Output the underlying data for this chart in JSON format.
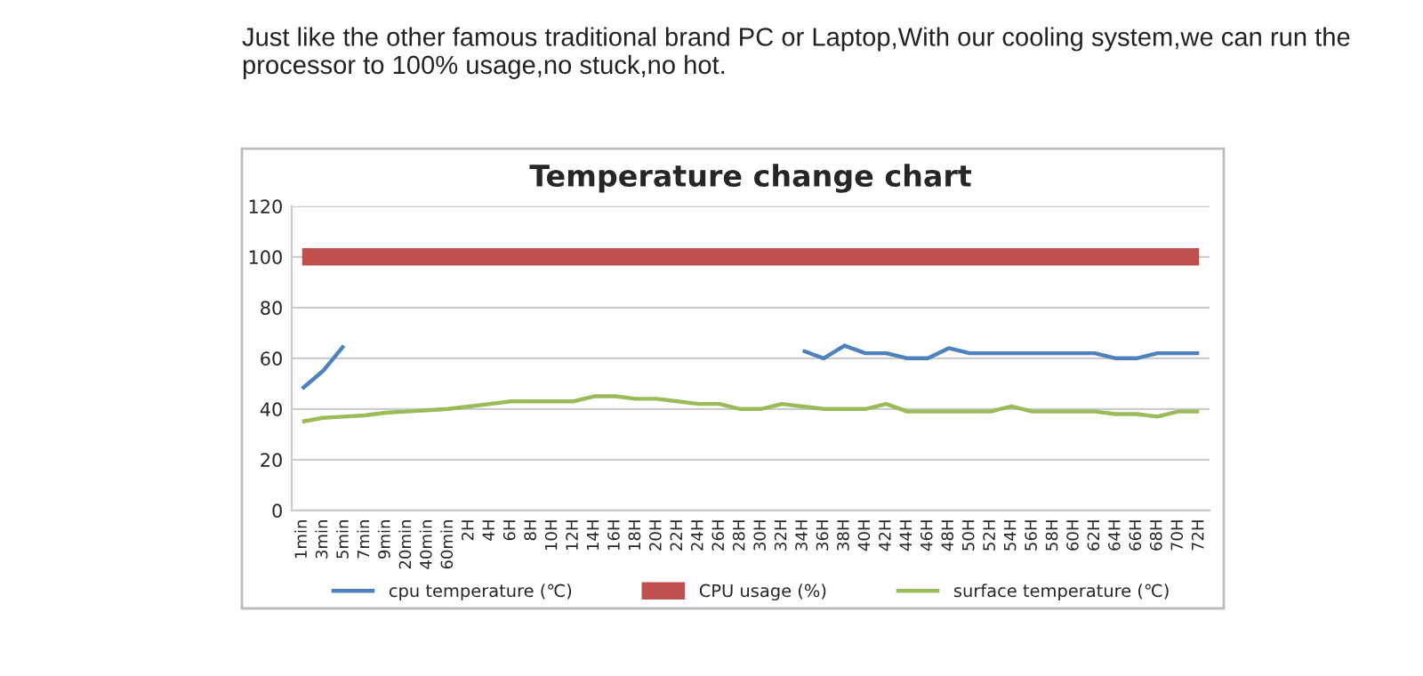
{
  "chart_data": {
    "type": "line",
    "title": "Temperature change chart",
    "annotations": [
      "Just like the other famous traditional brand PC or Laptop,With our cooling system,we can run the processor to 100% usage,no stuck,no hot."
    ],
    "categories": [
      "1min",
      "3min",
      "5min",
      "7min",
      "9min",
      "20min",
      "40min",
      "60min",
      "2H",
      "4H",
      "6H",
      "8H",
      "10H",
      "12H",
      "14H",
      "16H",
      "18H",
      "20H",
      "22H",
      "24H",
      "26H",
      "28H",
      "30H",
      "32H",
      "34H",
      "36H",
      "38H",
      "40H",
      "42H",
      "44H",
      "46H",
      "48H",
      "50H",
      "52H",
      "54H",
      "56H",
      "58H",
      "60H",
      "62H",
      "64H",
      "66H",
      "68H",
      "70H",
      "72H"
    ],
    "series": [
      {
        "name": "cpu temperature (℃)",
        "color": "#4f81bd",
        "marker": "none",
        "values": [
          48,
          55,
          65,
          null,
          null,
          null,
          null,
          null,
          null,
          null,
          null,
          null,
          null,
          null,
          null,
          null,
          null,
          null,
          null,
          null,
          null,
          null,
          null,
          null,
          63,
          60,
          65,
          62,
          62,
          60,
          60,
          64,
          62,
          62,
          62,
          62,
          62,
          62,
          62,
          60,
          60,
          62,
          62,
          62
        ]
      },
      {
        "name": "CPU usage (%)",
        "color": "#c0504d",
        "marker": "none",
        "values": [
          100,
          100,
          100,
          100,
          100,
          100,
          100,
          100,
          100,
          100,
          100,
          100,
          100,
          100,
          100,
          100,
          100,
          100,
          100,
          100,
          100,
          100,
          100,
          100,
          100,
          100,
          100,
          100,
          100,
          100,
          100,
          100,
          100,
          100,
          100,
          100,
          100,
          100,
          100,
          100,
          100,
          100,
          100,
          100
        ]
      },
      {
        "name": "surface temperature (℃)",
        "color": "#9bbb59",
        "marker": "none",
        "values": [
          35,
          36.5,
          37,
          37.5,
          38.5,
          39,
          39.5,
          40,
          41,
          42,
          43,
          43,
          43,
          43,
          45,
          45,
          44,
          44,
          43,
          42,
          42,
          40,
          40,
          42,
          41,
          40,
          40,
          40,
          42,
          39,
          39,
          39,
          39,
          39,
          41,
          39,
          39,
          39,
          39,
          38,
          38,
          37,
          39,
          39
        ]
      }
    ],
    "ylim": [
      0,
      120
    ],
    "yticks": [
      0,
      20,
      40,
      60,
      80,
      100,
      120
    ],
    "grid": "y",
    "legend": "bottom"
  }
}
